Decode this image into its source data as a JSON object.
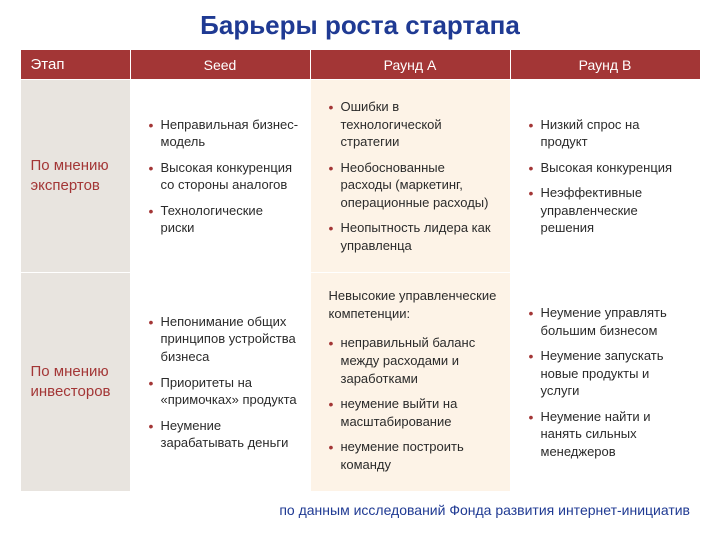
{
  "title": "Барьеры роста стартапа",
  "columns": {
    "stage": "Этап",
    "seed": "Seed",
    "roundA": "Раунд А",
    "roundB": "Раунд В"
  },
  "rows": {
    "experts": {
      "label": "По мнению экспертов",
      "seed": [
        "Неправильная бизнес-модель",
        "Высокая конкуренция со  стороны аналогов",
        "Технологические риски"
      ],
      "roundA": [
        "Ошибки в технологической стратегии",
        "Необоснованные расходы (маркетинг, операционные расходы)",
        "Неопытность лидера как управленца"
      ],
      "roundB": [
        "Низкий спрос на продукт",
        "Высокая конкуренция",
        "Неэффективные управленческие решения"
      ]
    },
    "investors": {
      "label": "По мнению инвесторов",
      "seed": [
        "Непонимание общих принципов устройства бизнеса",
        "Приоритеты на «примочках» продукта",
        "Неумение зарабатывать деньги"
      ],
      "roundA_lead": "Невысокие управленческие компетенции:",
      "roundA": [
        "неправильный баланс между расходами и заработками",
        "неумение выйти на масштабирование",
        "неумение построить команду"
      ],
      "roundB": [
        "Неумение управлять большим бизнесом",
        " Неумение запускать новые продукты и услуги",
        "Неумение найти и нанять сильных менеджеров"
      ]
    }
  },
  "footer": "по данным исследований Фонда развития интернет-инициатив",
  "colors": {
    "header_bg": "#a33636",
    "header_fg": "#ffffff",
    "rowlabel_bg": "#e8e4df",
    "rowlabel_fg": "#a33636",
    "alt_cell_bg": "#fdf3e7",
    "title_fg": "#1f3a93",
    "bullet": "#a33636"
  }
}
